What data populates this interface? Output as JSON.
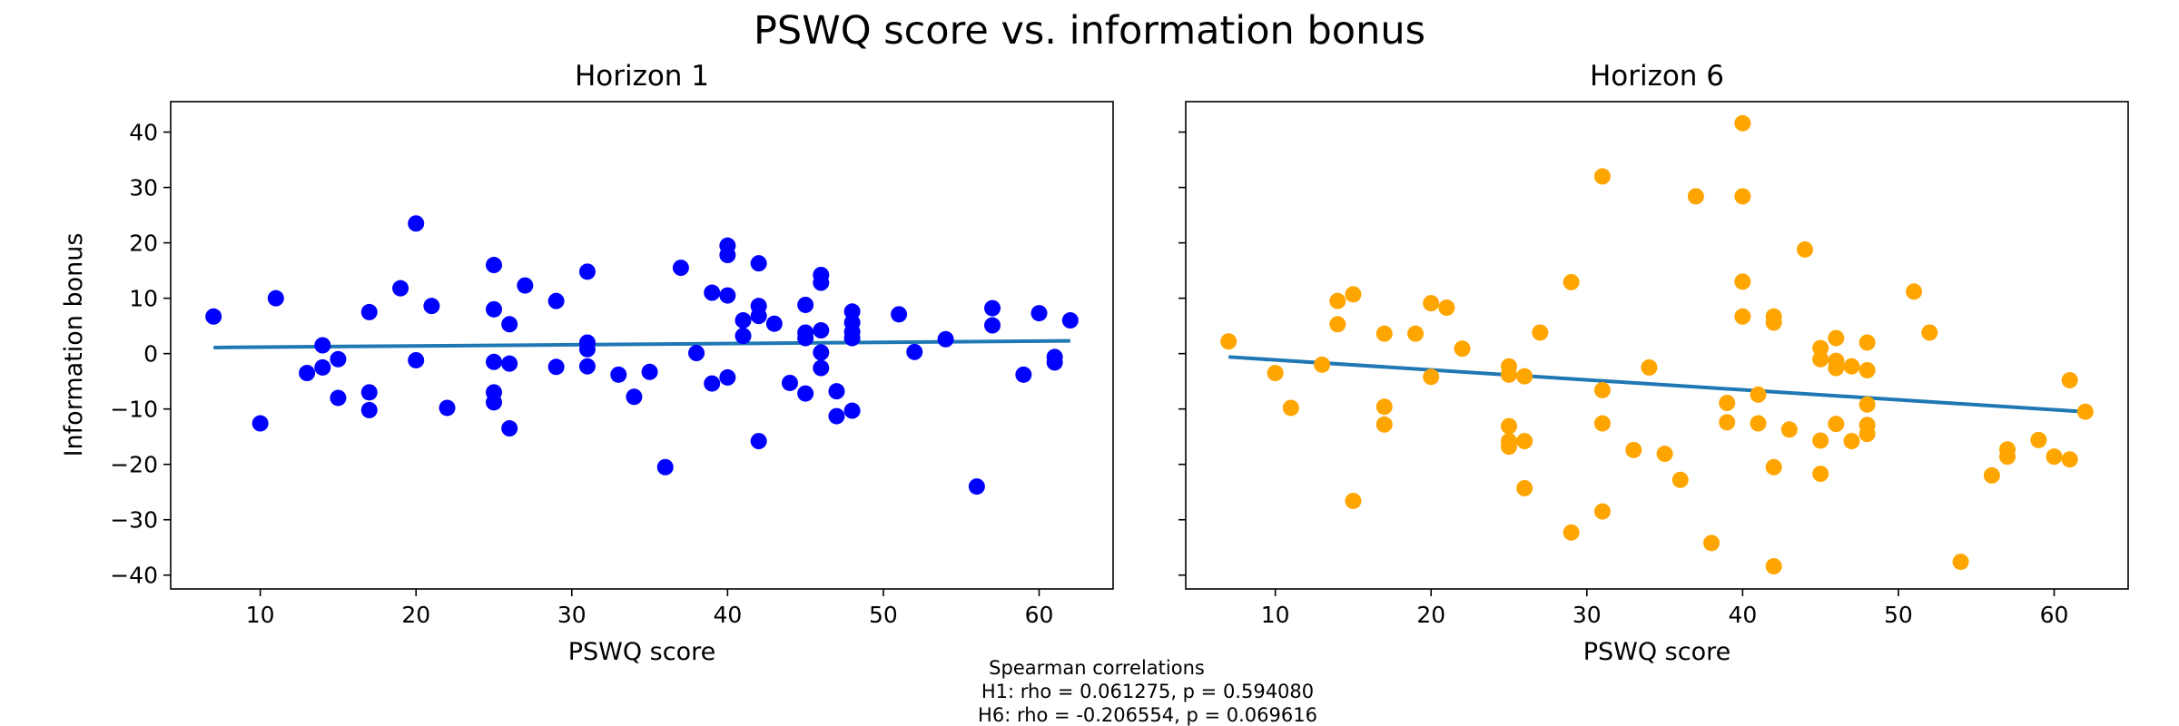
{
  "figure": {
    "title": "PSWQ score vs. information bonus"
  },
  "colors": {
    "h1_points": "#0000ff",
    "h6_points": "#ffa500",
    "fit_line": "#1f77b4"
  },
  "annotation": {
    "lines": [
      "Spearman correlations",
      "H1: rho = 0.061275, p = 0.594080",
      "H6: rho = -0.206554, p = 0.069616"
    ]
  },
  "chart_data": [
    {
      "type": "scatter",
      "title": "Horizon 1",
      "xlabel": "PSWQ score",
      "ylabel": "Information bonus",
      "xlim": [
        4.25,
        64.75
      ],
      "ylim": [
        -42.5,
        45.5
      ],
      "xticks": [
        10,
        20,
        30,
        40,
        50,
        60
      ],
      "yticks": [
        -40,
        -30,
        -20,
        -10,
        0,
        10,
        20,
        30,
        40
      ],
      "grid": false,
      "fit_line": {
        "x": [
          7,
          62
        ],
        "y": [
          1.1,
          2.3
        ]
      },
      "points": [
        [
          7,
          6.7
        ],
        [
          10,
          -12.6
        ],
        [
          11,
          10.0
        ],
        [
          13,
          -3.5
        ],
        [
          14,
          1.5
        ],
        [
          14,
          -2.5
        ],
        [
          15,
          -1.0
        ],
        [
          15,
          -8.0
        ],
        [
          17,
          7.5
        ],
        [
          17,
          -7.0
        ],
        [
          17,
          -10.2
        ],
        [
          19,
          11.8
        ],
        [
          20,
          23.5
        ],
        [
          20,
          -1.2
        ],
        [
          21,
          8.6
        ],
        [
          22,
          -9.8
        ],
        [
          25,
          16.0
        ],
        [
          25,
          8.0
        ],
        [
          25,
          -1.5
        ],
        [
          25,
          -7.0
        ],
        [
          25,
          -8.8
        ],
        [
          26,
          5.3
        ],
        [
          26,
          -1.8
        ],
        [
          26,
          -13.5
        ],
        [
          27,
          12.3
        ],
        [
          29,
          9.5
        ],
        [
          29,
          -2.4
        ],
        [
          31,
          14.8
        ],
        [
          31,
          2.0
        ],
        [
          31,
          0.8
        ],
        [
          31,
          -2.3
        ],
        [
          33,
          -3.8
        ],
        [
          34,
          -7.8
        ],
        [
          35,
          -3.3
        ],
        [
          36,
          -20.5
        ],
        [
          37,
          15.5
        ],
        [
          38,
          0.1
        ],
        [
          39,
          11.0
        ],
        [
          39,
          -5.4
        ],
        [
          40,
          19.5
        ],
        [
          40,
          17.8
        ],
        [
          40,
          10.5
        ],
        [
          40,
          -4.3
        ],
        [
          41,
          6.0
        ],
        [
          41,
          3.2
        ],
        [
          42,
          16.3
        ],
        [
          42,
          8.6
        ],
        [
          42,
          6.8
        ],
        [
          42,
          -15.8
        ],
        [
          43,
          5.4
        ],
        [
          44,
          -5.3
        ],
        [
          45,
          8.8
        ],
        [
          45,
          3.8
        ],
        [
          45,
          2.8
        ],
        [
          45,
          -7.2
        ],
        [
          46,
          14.2
        ],
        [
          46,
          12.8
        ],
        [
          46,
          4.2
        ],
        [
          46,
          0.2
        ],
        [
          46,
          -2.6
        ],
        [
          47,
          -6.8
        ],
        [
          47,
          -11.3
        ],
        [
          48,
          7.6
        ],
        [
          48,
          5.6
        ],
        [
          48,
          3.9
        ],
        [
          48,
          2.8
        ],
        [
          48,
          -10.3
        ],
        [
          51,
          7.1
        ],
        [
          52,
          0.3
        ],
        [
          54,
          2.6
        ],
        [
          56,
          -24.0
        ],
        [
          57,
          8.2
        ],
        [
          57,
          5.1
        ],
        [
          59,
          -3.8
        ],
        [
          60,
          7.3
        ],
        [
          61,
          -0.6
        ],
        [
          61,
          -1.6
        ],
        [
          62,
          6.0
        ]
      ]
    },
    {
      "type": "scatter",
      "title": "Horizon 6",
      "xlabel": "PSWQ score",
      "ylabel": "",
      "xlim": [
        4.25,
        64.75
      ],
      "ylim": [
        -42.5,
        45.5
      ],
      "xticks": [
        10,
        20,
        30,
        40,
        50,
        60
      ],
      "yticks": [
        -40,
        -30,
        -20,
        -10,
        0,
        10,
        20,
        30,
        40
      ],
      "shared_y": true,
      "grid": false,
      "fit_line": {
        "x": [
          7,
          62
        ],
        "y": [
          -0.6,
          -10.5
        ]
      },
      "points": [
        [
          7,
          2.2
        ],
        [
          10,
          -3.5
        ],
        [
          11,
          -9.8
        ],
        [
          13,
          -2.0
        ],
        [
          14,
          9.5
        ],
        [
          14,
          5.3
        ],
        [
          15,
          10.7
        ],
        [
          15,
          -26.6
        ],
        [
          17,
          3.6
        ],
        [
          17,
          -9.6
        ],
        [
          17,
          -12.8
        ],
        [
          19,
          3.6
        ],
        [
          20,
          9.1
        ],
        [
          20,
          -4.2
        ],
        [
          21,
          8.3
        ],
        [
          22,
          0.9
        ],
        [
          25,
          -2.3
        ],
        [
          25,
          -3.8
        ],
        [
          25,
          -13.1
        ],
        [
          25,
          -15.8
        ],
        [
          25,
          -16.8
        ],
        [
          26,
          -4.1
        ],
        [
          26,
          -15.8
        ],
        [
          26,
          -24.3
        ],
        [
          27,
          3.8
        ],
        [
          29,
          12.9
        ],
        [
          29,
          -32.3
        ],
        [
          31,
          32.0
        ],
        [
          31,
          -6.6
        ],
        [
          31,
          -12.6
        ],
        [
          31,
          -28.5
        ],
        [
          33,
          -17.4
        ],
        [
          34,
          -2.5
        ],
        [
          35,
          -18.1
        ],
        [
          36,
          -22.8
        ],
        [
          37,
          28.4
        ],
        [
          38,
          -34.2
        ],
        [
          39,
          -8.9
        ],
        [
          39,
          -12.4
        ],
        [
          40,
          41.6
        ],
        [
          40,
          28.4
        ],
        [
          40,
          13.0
        ],
        [
          40,
          6.7
        ],
        [
          41,
          -7.4
        ],
        [
          41,
          -12.6
        ],
        [
          42,
          6.7
        ],
        [
          42,
          5.6
        ],
        [
          42,
          -20.5
        ],
        [
          42,
          -38.4
        ],
        [
          43,
          -13.7
        ],
        [
          44,
          18.8
        ],
        [
          45,
          1.0
        ],
        [
          45,
          -1.0
        ],
        [
          45,
          -15.7
        ],
        [
          45,
          -21.7
        ],
        [
          46,
          2.8
        ],
        [
          46,
          -1.3
        ],
        [
          46,
          -2.6
        ],
        [
          46,
          -12.7
        ],
        [
          47,
          -2.3
        ],
        [
          47,
          -15.8
        ],
        [
          48,
          2.0
        ],
        [
          48,
          -3.0
        ],
        [
          48,
          -9.2
        ],
        [
          48,
          -12.9
        ],
        [
          48,
          -14.5
        ],
        [
          51,
          11.2
        ],
        [
          52,
          3.8
        ],
        [
          54,
          -37.6
        ],
        [
          56,
          -22.0
        ],
        [
          57,
          -17.3
        ],
        [
          57,
          -18.6
        ],
        [
          59,
          -15.6
        ],
        [
          60,
          -18.6
        ],
        [
          61,
          -4.8
        ],
        [
          61,
          -19.1
        ],
        [
          62,
          -10.5
        ]
      ]
    }
  ]
}
